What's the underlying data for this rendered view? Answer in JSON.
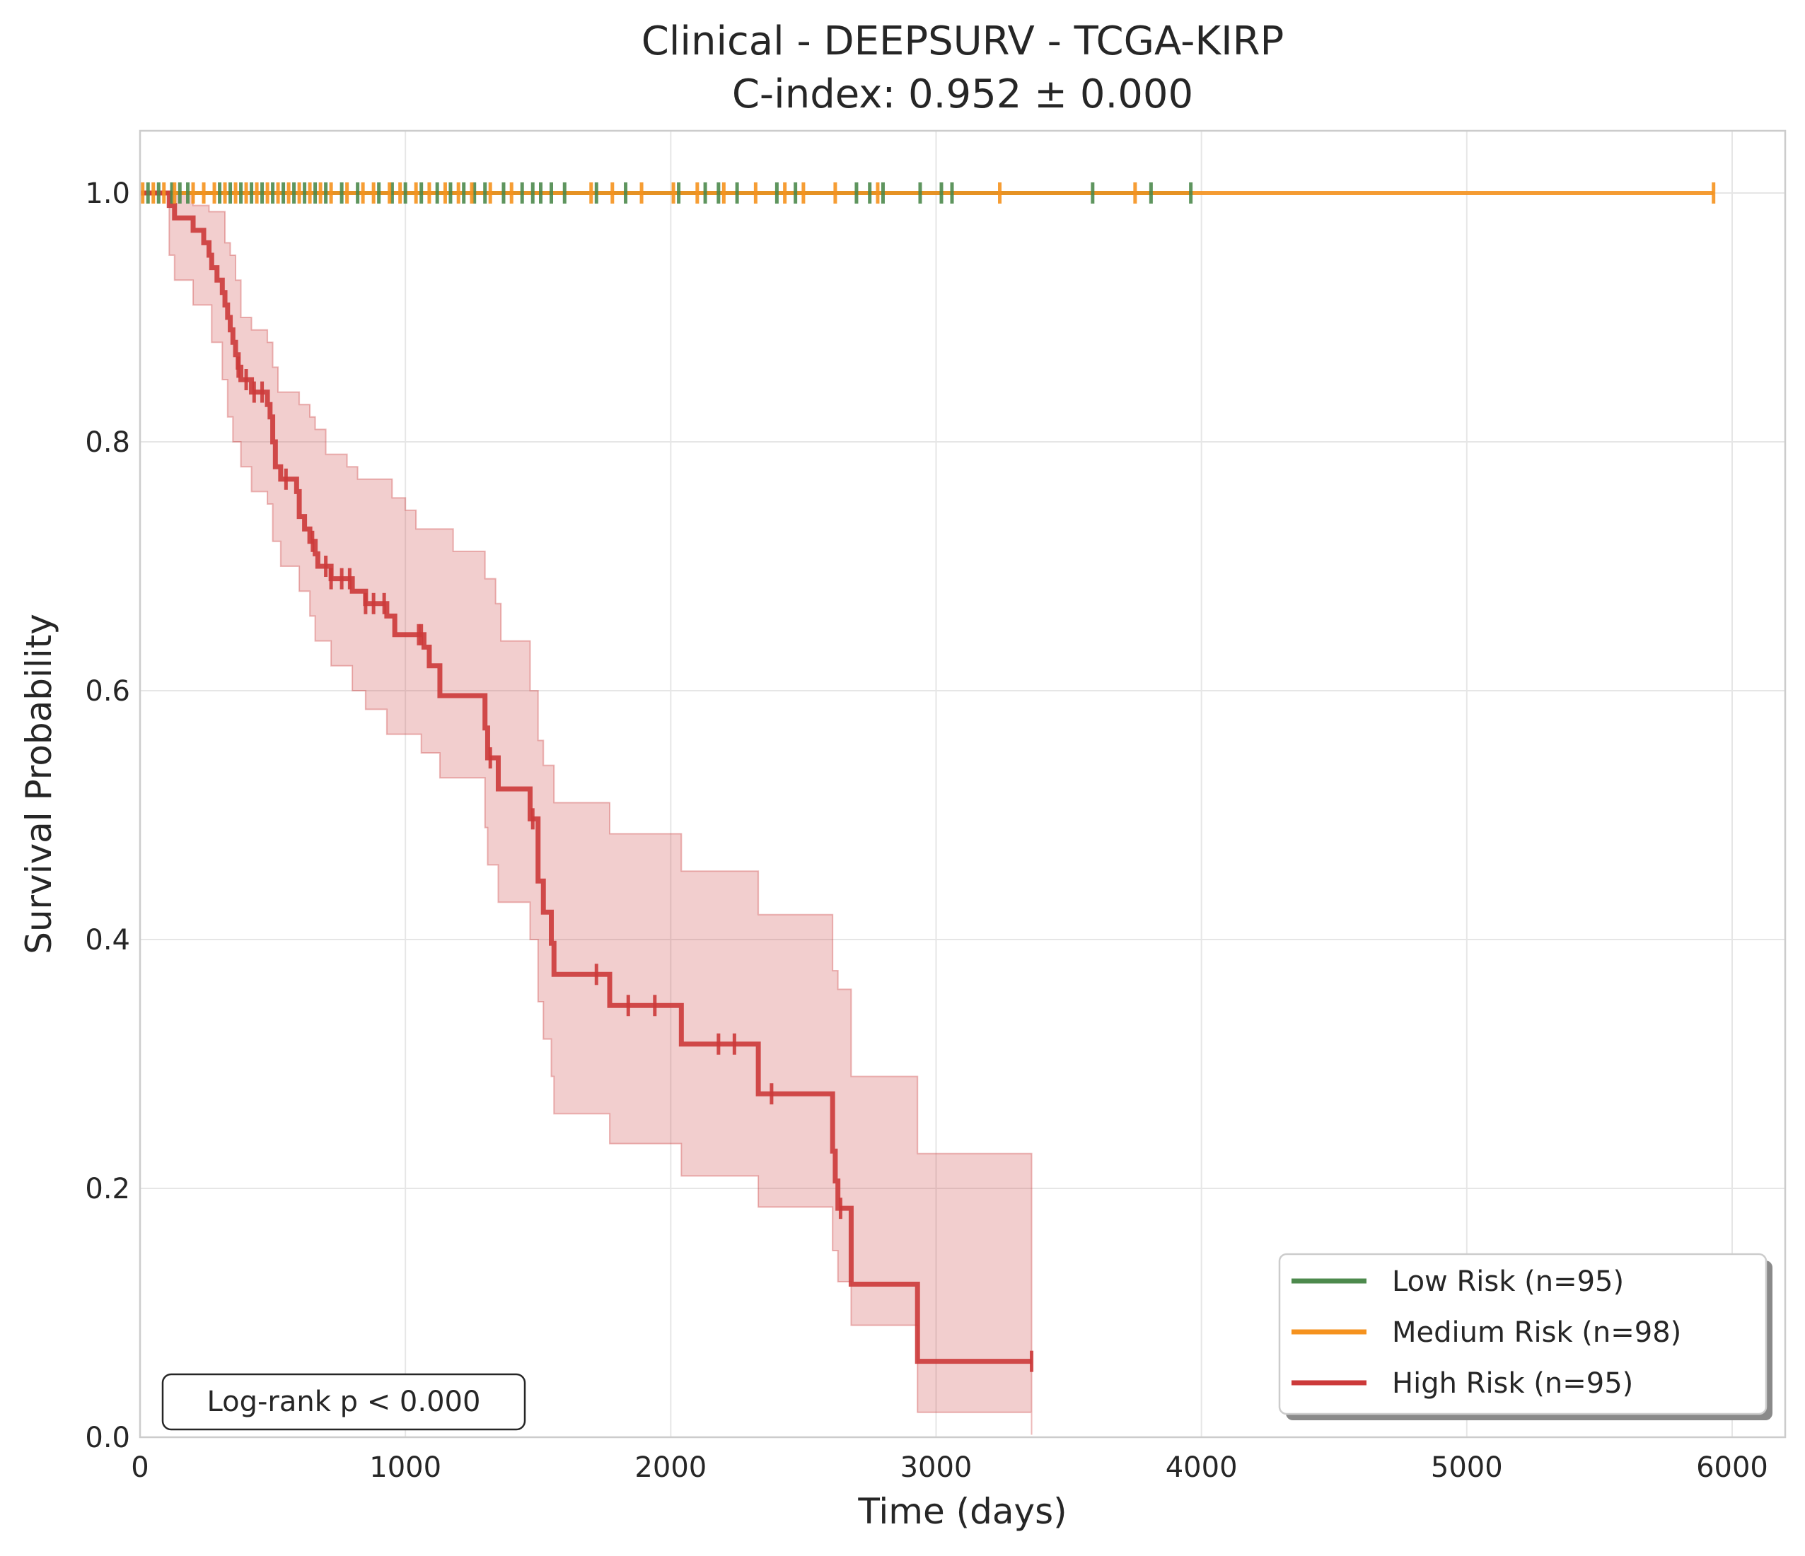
{
  "chart_data": {
    "type": "line",
    "subtype": "kaplan-meier",
    "title_line1": "Clinical - DEEPSURV - TCGA-KIRP",
    "title_line2": "C-index: 0.952 ± 0.000",
    "xlabel": "Time (days)",
    "ylabel": "Survival Probability",
    "xlim": [
      0,
      6200
    ],
    "ylim": [
      0,
      1.05
    ],
    "x_ticks": [
      0,
      1000,
      2000,
      3000,
      4000,
      5000,
      6000
    ],
    "x_tick_labels": [
      "0",
      "1000",
      "2000",
      "3000",
      "4000",
      "5000",
      "6000"
    ],
    "y_ticks": [
      0.0,
      0.2,
      0.4,
      0.6,
      0.8,
      1.0
    ],
    "y_tick_labels": [
      "0.0",
      "0.2",
      "0.4",
      "0.6",
      "0.8",
      "1.0"
    ],
    "grid": true,
    "legend_position": "bottom-right",
    "annotation": "Log-rank p < 0.000",
    "colors": {
      "low": "#4d8a4d",
      "medium": "#f5921e",
      "high": "#cc3a3a"
    },
    "series": [
      {
        "key": "low",
        "name": "Low Risk (n=95)",
        "color": "#4d8a4d",
        "steps": [
          [
            0,
            1.0
          ],
          [
            3960,
            1.0
          ]
        ],
        "censors": [
          30,
          70,
          120,
          150,
          180,
          300,
          340,
          380,
          420,
          460,
          500,
          540,
          580,
          620,
          660,
          700,
          760,
          820,
          900,
          950,
          1000,
          1060,
          1120,
          1170,
          1220,
          1260,
          1300,
          1370,
          1440,
          1480,
          1510,
          1550,
          1600,
          1720,
          1830,
          2030,
          2130,
          2180,
          2250,
          2400,
          2470,
          2700,
          2750,
          2800,
          2940,
          3020,
          3060,
          3590,
          3810,
          3960
        ]
      },
      {
        "key": "medium",
        "name": "Medium Risk (n=98)",
        "color": "#f5921e",
        "steps": [
          [
            0,
            1.0
          ],
          [
            5930,
            1.0
          ]
        ],
        "censors": [
          10,
          50,
          90,
          130,
          200,
          240,
          280,
          320,
          360,
          400,
          440,
          480,
          520,
          560,
          600,
          640,
          680,
          720,
          780,
          840,
          880,
          940,
          980,
          1040,
          1090,
          1150,
          1200,
          1250,
          1320,
          1400,
          1700,
          1780,
          1890,
          2010,
          2100,
          2200,
          2320,
          2430,
          2500,
          2620,
          2780,
          3240,
          3750,
          5930
        ]
      },
      {
        "key": "high",
        "name": "High Risk (n=95)",
        "color": "#cc3a3a",
        "steps": [
          [
            0,
            1.0
          ],
          [
            110,
            0.99
          ],
          [
            130,
            0.98
          ],
          [
            200,
            0.97
          ],
          [
            240,
            0.96
          ],
          [
            260,
            0.95
          ],
          [
            270,
            0.94
          ],
          [
            290,
            0.93
          ],
          [
            310,
            0.92
          ],
          [
            320,
            0.91
          ],
          [
            330,
            0.9
          ],
          [
            340,
            0.89
          ],
          [
            350,
            0.88
          ],
          [
            360,
            0.87
          ],
          [
            370,
            0.86
          ],
          [
            380,
            0.85
          ],
          [
            420,
            0.84
          ],
          [
            480,
            0.83
          ],
          [
            490,
            0.82
          ],
          [
            500,
            0.8
          ],
          [
            510,
            0.78
          ],
          [
            530,
            0.77
          ],
          [
            590,
            0.76
          ],
          [
            600,
            0.74
          ],
          [
            620,
            0.73
          ],
          [
            640,
            0.72
          ],
          [
            660,
            0.71
          ],
          [
            670,
            0.7
          ],
          [
            720,
            0.69
          ],
          [
            800,
            0.68
          ],
          [
            850,
            0.67
          ],
          [
            930,
            0.66
          ],
          [
            960,
            0.645
          ],
          [
            1070,
            0.635
          ],
          [
            1090,
            0.62
          ],
          [
            1130,
            0.596
          ],
          [
            1300,
            0.57
          ],
          [
            1310,
            0.546
          ],
          [
            1350,
            0.521
          ],
          [
            1470,
            0.497
          ],
          [
            1500,
            0.447
          ],
          [
            1520,
            0.422
          ],
          [
            1550,
            0.397
          ],
          [
            1560,
            0.372
          ],
          [
            1770,
            0.347
          ],
          [
            2040,
            0.316
          ],
          [
            2330,
            0.276
          ],
          [
            2610,
            0.23
          ],
          [
            2620,
            0.206
          ],
          [
            2630,
            0.184
          ],
          [
            2680,
            0.123
          ],
          [
            2930,
            0.061
          ],
          [
            3360,
            0.061
          ]
        ],
        "ci_upper": [
          [
            0,
            1.0
          ],
          [
            110,
            1.0
          ],
          [
            200,
            0.99
          ],
          [
            260,
            0.985
          ],
          [
            320,
            0.96
          ],
          [
            340,
            0.95
          ],
          [
            360,
            0.93
          ],
          [
            380,
            0.9
          ],
          [
            420,
            0.89
          ],
          [
            480,
            0.88
          ],
          [
            500,
            0.86
          ],
          [
            520,
            0.84
          ],
          [
            600,
            0.83
          ],
          [
            640,
            0.82
          ],
          [
            660,
            0.81
          ],
          [
            700,
            0.79
          ],
          [
            780,
            0.78
          ],
          [
            820,
            0.77
          ],
          [
            950,
            0.755
          ],
          [
            1000,
            0.745
          ],
          [
            1040,
            0.73
          ],
          [
            1180,
            0.712
          ],
          [
            1300,
            0.69
          ],
          [
            1340,
            0.67
          ],
          [
            1360,
            0.64
          ],
          [
            1470,
            0.6
          ],
          [
            1500,
            0.56
          ],
          [
            1520,
            0.54
          ],
          [
            1560,
            0.51
          ],
          [
            1770,
            0.485
          ],
          [
            2040,
            0.455
          ],
          [
            2330,
            0.42
          ],
          [
            2610,
            0.375
          ],
          [
            2630,
            0.36
          ],
          [
            2680,
            0.29
          ],
          [
            2930,
            0.228
          ],
          [
            3360,
            0.228
          ]
        ],
        "ci_lower": [
          [
            0,
            1.0
          ],
          [
            110,
            0.95
          ],
          [
            130,
            0.93
          ],
          [
            200,
            0.91
          ],
          [
            270,
            0.88
          ],
          [
            310,
            0.85
          ],
          [
            330,
            0.82
          ],
          [
            350,
            0.8
          ],
          [
            380,
            0.78
          ],
          [
            420,
            0.76
          ],
          [
            480,
            0.75
          ],
          [
            500,
            0.72
          ],
          [
            530,
            0.7
          ],
          [
            600,
            0.68
          ],
          [
            640,
            0.66
          ],
          [
            660,
            0.64
          ],
          [
            720,
            0.62
          ],
          [
            800,
            0.6
          ],
          [
            850,
            0.585
          ],
          [
            930,
            0.565
          ],
          [
            1060,
            0.55
          ],
          [
            1130,
            0.53
          ],
          [
            1300,
            0.49
          ],
          [
            1310,
            0.46
          ],
          [
            1350,
            0.43
          ],
          [
            1470,
            0.4
          ],
          [
            1500,
            0.35
          ],
          [
            1520,
            0.32
          ],
          [
            1550,
            0.29
          ],
          [
            1560,
            0.26
          ],
          [
            1770,
            0.236
          ],
          [
            2040,
            0.21
          ],
          [
            2330,
            0.185
          ],
          [
            2610,
            0.15
          ],
          [
            2630,
            0.125
          ],
          [
            2680,
            0.09
          ],
          [
            2930,
            0.02
          ],
          [
            3360,
            0.002
          ]
        ],
        "censors": [
          370,
          400,
          430,
          460,
          550,
          650,
          700,
          720,
          760,
          790,
          850,
          880,
          920,
          1050,
          1060,
          1320,
          1480,
          1720,
          1840,
          1940,
          2180,
          2240,
          2380,
          2640,
          3360
        ]
      }
    ]
  }
}
